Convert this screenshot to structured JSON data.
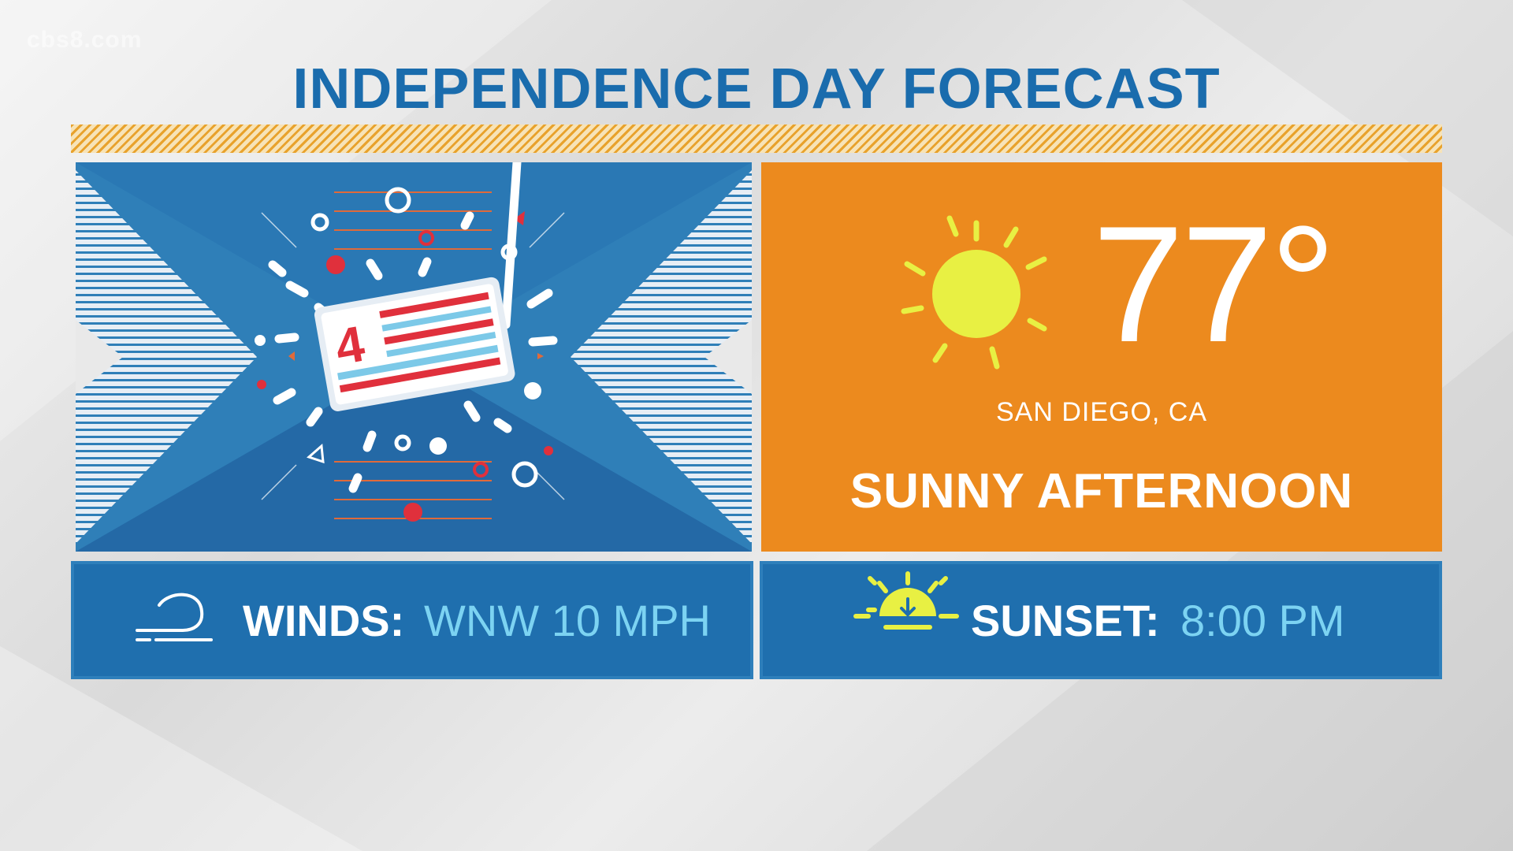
{
  "watermark": "cbs8.com",
  "title": "INDEPENDENCE DAY FORECAST",
  "badge": {
    "number": "4"
  },
  "forecast": {
    "temperature": "77°",
    "location": "SAN DIEGO, CA",
    "condition": "SUNNY AFTERNOON"
  },
  "winds": {
    "label": "WINDS:",
    "value": "WNW 10 MPH"
  },
  "sunset": {
    "label": "SUNSET:",
    "value": "8:00 PM"
  },
  "icons": {
    "weather": "sun-icon",
    "winds": "wind-icon",
    "sunset": "sunset-icon",
    "graphic": "fourth-of-july-flag-icon"
  },
  "colors": {
    "title_blue": "#1a6cad",
    "panel_blue": "#2f7fb8",
    "panel_orange": "#ec8a1e",
    "value_cyan": "#7cd3f2",
    "sun_yellow": "#e8f043",
    "flag_red": "#e0303c"
  }
}
